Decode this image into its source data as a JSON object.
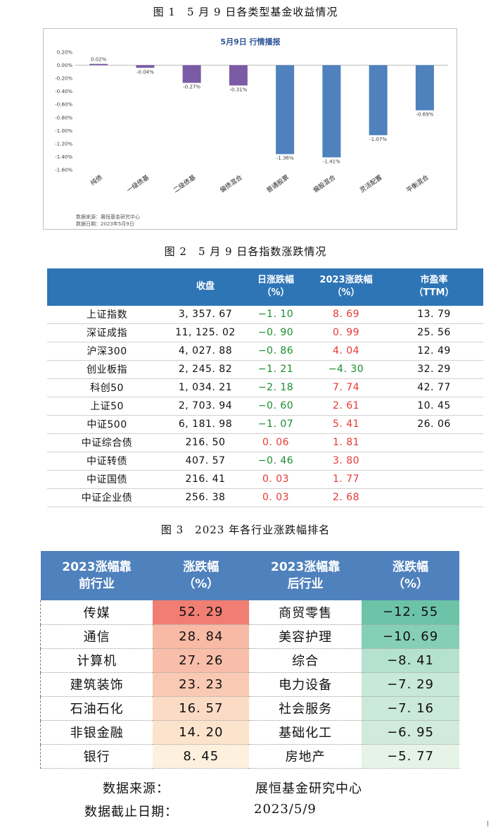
{
  "figure1": {
    "caption": "图 1　5 月 9 日各类型基金收益情况",
    "chart_data": {
      "type": "bar",
      "title": "5月9日  行情播报",
      "categories": [
        "纯债",
        "一级债基",
        "二级债基",
        "偏债混合",
        "普通股票",
        "偏股混合",
        "灵活配置",
        "平衡混合"
      ],
      "values": [
        0.02,
        -0.04,
        -0.27,
        -0.31,
        -1.36,
        -1.41,
        -1.07,
        -0.69
      ],
      "data_labels": [
        "0.02%",
        "-0.04%",
        "-0.27%",
        "-0.31%",
        "-1.36%",
        "-1.41%",
        "-1.07%",
        "-0.69%"
      ],
      "ylim": [
        -1.6,
        0.2
      ],
      "y_ticks": [
        0.2,
        0.0,
        -0.2,
        -0.4,
        -0.6,
        -0.8,
        -1.0,
        -1.2,
        -1.4,
        -1.6
      ],
      "y_tick_labels": [
        "0.20%",
        "0.00%",
        "-0.20%",
        "-0.40%",
        "-0.60%",
        "-0.80%",
        "-1.00%",
        "-1.20%",
        "-1.40%",
        "-1.60%"
      ],
      "colors": [
        "#7b5aa6",
        "#7b5aa6",
        "#7b5aa6",
        "#7b5aa6",
        "#4f81bd",
        "#4f81bd",
        "#4f81bd",
        "#4f81bd"
      ],
      "grid": false,
      "legend": "none"
    },
    "source": "数据来源：展恒基金研究中心",
    "date": "数据日期：2023年5月9日"
  },
  "figure2": {
    "caption": "图 2　5 月 9 日各指数涨跌情况",
    "headers": [
      "",
      "收盘",
      "日涨跌幅\n（%）",
      "2023涨跌幅\n（%）",
      "市盈率\n（TTM）"
    ],
    "rows": [
      {
        "name": "上证指数",
        "close": "3, 357. 67",
        "day": "−1. 10",
        "day_sign": "neg",
        "ytd": "8. 69",
        "ytd_sign": "pos",
        "pe": "13. 79"
      },
      {
        "name": "深证成指",
        "close": "11, 125. 02",
        "day": "−0. 90",
        "day_sign": "neg",
        "ytd": "0. 99",
        "ytd_sign": "pos",
        "pe": "25. 56"
      },
      {
        "name": "沪深300",
        "close": "4, 027. 88",
        "day": "−0. 86",
        "day_sign": "neg",
        "ytd": "4. 04",
        "ytd_sign": "pos",
        "pe": "12. 49"
      },
      {
        "name": "创业板指",
        "close": "2, 245. 82",
        "day": "−1. 21",
        "day_sign": "neg",
        "ytd": "−4. 30",
        "ytd_sign": "neg",
        "pe": "32. 29"
      },
      {
        "name": "科创50",
        "close": "1, 034. 21",
        "day": "−2. 18",
        "day_sign": "neg",
        "ytd": "7. 74",
        "ytd_sign": "pos",
        "pe": "42. 77"
      },
      {
        "name": "上证50",
        "close": "2, 703. 94",
        "day": "−0. 60",
        "day_sign": "neg",
        "ytd": "2. 61",
        "ytd_sign": "pos",
        "pe": "10. 45"
      },
      {
        "name": "中证500",
        "close": "6, 181. 98",
        "day": "−1. 07",
        "day_sign": "neg",
        "ytd": "5. 41",
        "ytd_sign": "pos",
        "pe": "26. 06"
      },
      {
        "name": "中证综合债",
        "close": "216. 50",
        "day": "0. 06",
        "day_sign": "pos",
        "ytd": "1. 81",
        "ytd_sign": "pos",
        "pe": ""
      },
      {
        "name": "中证转债",
        "close": "407. 57",
        "day": "−0. 46",
        "day_sign": "neg",
        "ytd": "3. 80",
        "ytd_sign": "pos",
        "pe": ""
      },
      {
        "name": "中证国债",
        "close": "216. 41",
        "day": "0. 03",
        "day_sign": "pos",
        "ytd": "1. 77",
        "ytd_sign": "pos",
        "pe": ""
      },
      {
        "name": "中证企业债",
        "close": "256. 38",
        "day": "0. 03",
        "day_sign": "pos",
        "ytd": "2. 68",
        "ytd_sign": "pos",
        "pe": ""
      }
    ],
    "colors": {
      "header": "#2e75b6",
      "neg": "#1a8c2e",
      "pos": "#e53935"
    }
  },
  "figure3": {
    "caption": "图 3　2023 年各行业涨跌幅排名",
    "headers": [
      "2023涨幅靠\n前行业",
      "涨跌幅\n（%）",
      "2023涨幅靠\n后行业",
      "涨跌幅\n（%）"
    ],
    "rows": [
      {
        "top": "传媒",
        "top_val": "52. 29",
        "top_bg": "#f07e72",
        "bottom": "商贸零售",
        "bottom_val": "−12. 55",
        "bottom_bg": "#6cc3a8"
      },
      {
        "top": "通信",
        "top_val": "28. 84",
        "top_bg": "#f8b9a5",
        "bottom": "美容护理",
        "bottom_val": "−10. 69",
        "bottom_bg": "#86cfb7"
      },
      {
        "top": "计算机",
        "top_val": "27. 26",
        "top_bg": "#f8bea9",
        "bottom": "综合",
        "bottom_val": "−8. 41",
        "bottom_bg": "#b5e1cf"
      },
      {
        "top": "建筑装饰",
        "top_val": "23. 23",
        "top_bg": "#f9c9b3",
        "bottom": "电力设备",
        "bottom_val": "−7. 29",
        "bottom_bg": "#c8e8d9"
      },
      {
        "top": "石油石化",
        "top_val": "16. 57",
        "top_bg": "#fbdbc4",
        "bottom": "社会服务",
        "bottom_val": "−7. 16",
        "bottom_bg": "#cae9da"
      },
      {
        "top": "非银金融",
        "top_val": "14. 20",
        "top_bg": "#fce3cc",
        "bottom": "基础化工",
        "bottom_val": "−6. 95",
        "bottom_bg": "#d0ebdd"
      },
      {
        "top": "银行",
        "top_val": "8. 45",
        "top_bg": "#fdf0dd",
        "bottom": "房地产",
        "bottom_val": "−5. 77",
        "bottom_bg": "#e6f3e7"
      }
    ],
    "footer_source_label": "数据来源：",
    "footer_source_value": "展恒基金研究中心",
    "footer_date_label": "数据截止日期：",
    "footer_date_value": "2023/5/9",
    "colors": {
      "header": "#4f81bd"
    }
  }
}
